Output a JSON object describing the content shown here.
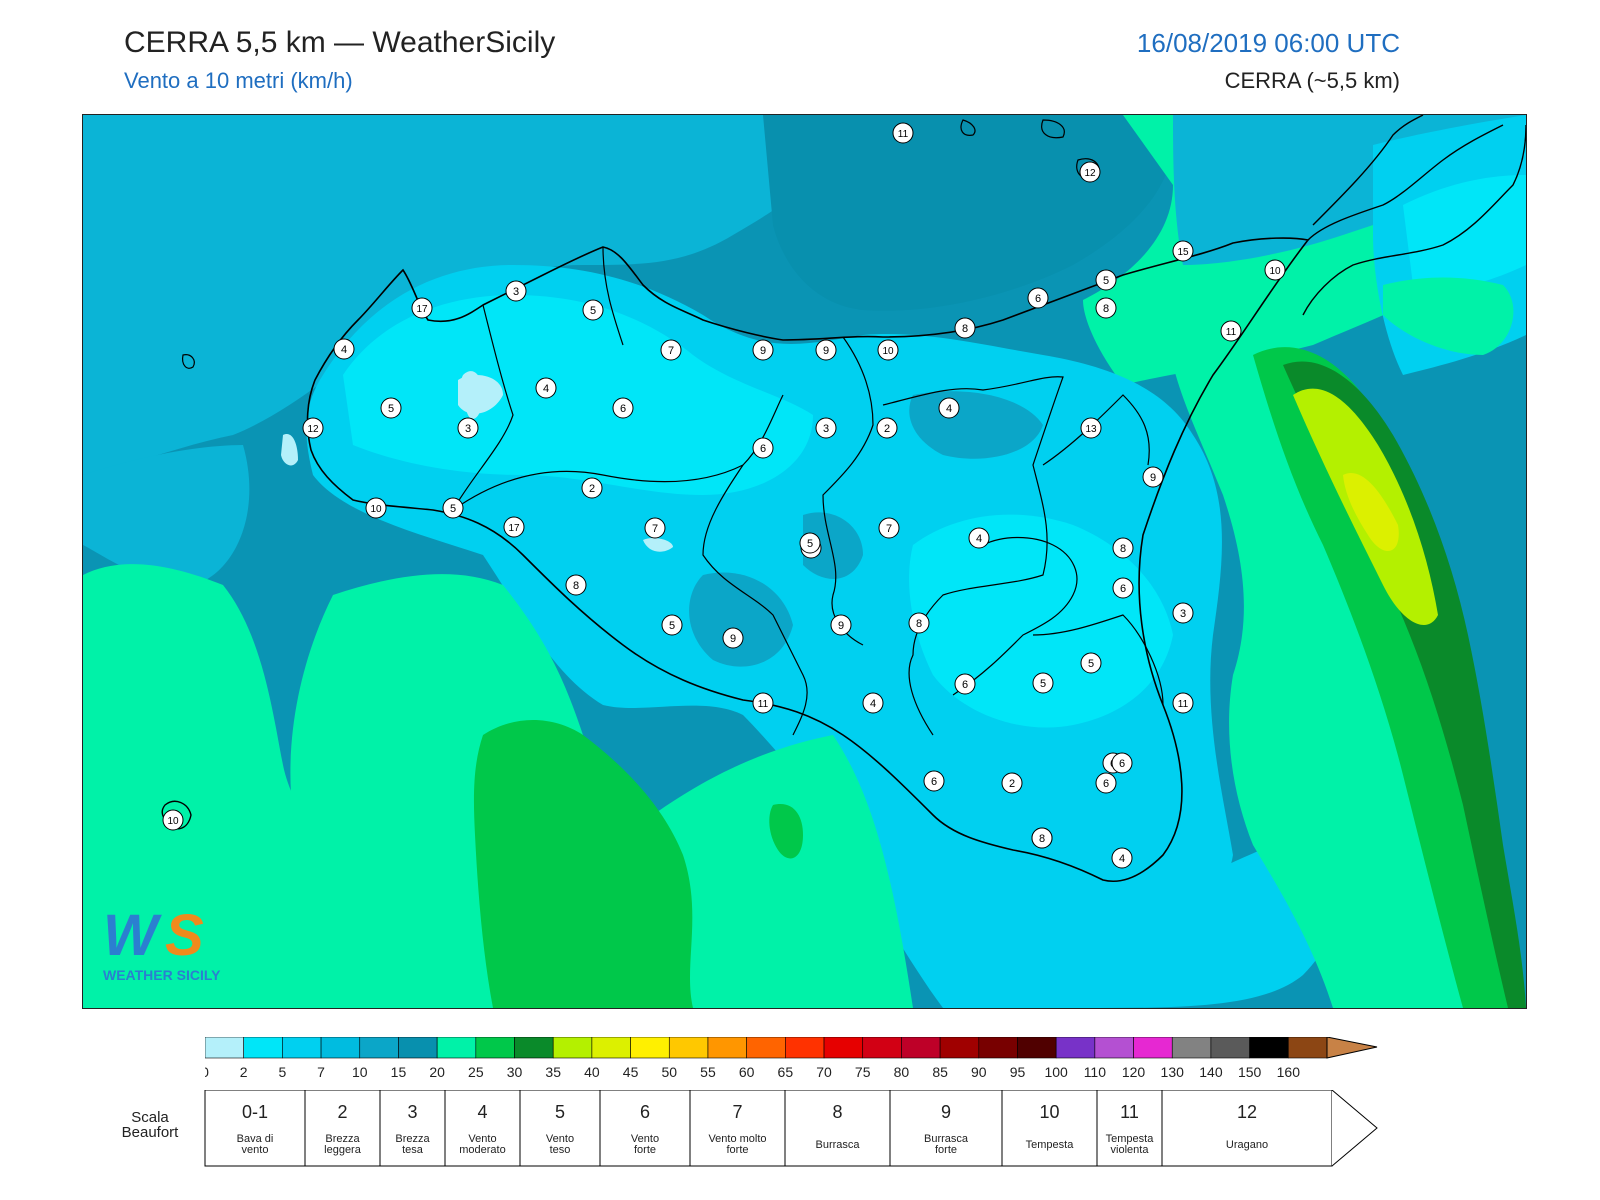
{
  "header": {
    "title": "CERRA 5,5 km — WeatherSicily",
    "subtitle": "Vento a 10 metri (km/h)",
    "datetime": "16/08/2019 06:00 UTC",
    "model": "CERRA (~5,5 km)"
  },
  "logo": {
    "text": "WEATHER SICILY",
    "mark": "WS"
  },
  "colors": {
    "sea_dark": "#0a94b4",
    "sea_mid": "#0bb4d6",
    "light_cyan": "#00d6f2",
    "pale_cyan": "#b4f0fa",
    "aqua_green": "#00f2a8",
    "green": "#00c84a",
    "dark_green": "#0a8a2a",
    "yellow_green": "#c8f000",
    "title_blue": "#1f6ec0"
  },
  "wind_labels": [
    "11",
    "12",
    "3",
    "5",
    "15",
    "10",
    "5",
    "6",
    "8",
    "7",
    "9",
    "9",
    "10",
    "8",
    "11",
    "17",
    "4",
    "4",
    "5",
    "3",
    "6",
    "4",
    "2",
    "3",
    "6",
    "13",
    "9",
    "12",
    "10",
    "5",
    "17",
    "2",
    "7",
    "9",
    "4",
    "8",
    "7",
    "7",
    "5",
    "6",
    "5",
    "6",
    "8",
    "5",
    "11",
    "8",
    "9",
    "5",
    "11",
    "4",
    "6",
    "2",
    "5",
    "6",
    "6",
    "3",
    "6",
    "8",
    "4",
    "10"
  ],
  "colorbar": {
    "ticks": [
      "0",
      "2",
      "5",
      "7",
      "10",
      "15",
      "20",
      "25",
      "30",
      "35",
      "40",
      "45",
      "50",
      "55",
      "60",
      "65",
      "70",
      "75",
      "80",
      "85",
      "90",
      "95",
      "100",
      "110",
      "120",
      "130",
      "140",
      "150",
      "160"
    ],
    "colors": [
      "#b4f0fa",
      "#00e6f8",
      "#00d0f0",
      "#00bce0",
      "#0ba6c8",
      "#0890ae",
      "#00f2a8",
      "#00c84a",
      "#0a8a2a",
      "#b4f000",
      "#dcf000",
      "#fff000",
      "#ffc800",
      "#ff9600",
      "#ff6400",
      "#ff3200",
      "#e60000",
      "#d20014",
      "#be0028",
      "#a00000",
      "#780000",
      "#500000",
      "#7832c8",
      "#b450d2",
      "#e628d2",
      "#828282",
      "#5a5a5a",
      "#000000",
      "#8c4614",
      "#c88246"
    ]
  },
  "beaufort": {
    "title": "Scala Beaufort",
    "classes": [
      {
        "num": "0-1",
        "desc": "Bava di vento"
      },
      {
        "num": "2",
        "desc": "Brezza leggera"
      },
      {
        "num": "3",
        "desc": "Brezza tesa"
      },
      {
        "num": "4",
        "desc": "Vento moderato"
      },
      {
        "num": "5",
        "desc": "Vento teso"
      },
      {
        "num": "6",
        "desc": "Vento forte"
      },
      {
        "num": "7",
        "desc": "Vento molto forte"
      },
      {
        "num": "8",
        "desc": "Burrasca"
      },
      {
        "num": "9",
        "desc": "Burrasca forte"
      },
      {
        "num": "10",
        "desc": "Tempesta"
      },
      {
        "num": "11",
        "desc": "Tempesta violenta"
      },
      {
        "num": "12",
        "desc": "Uragano"
      }
    ]
  }
}
